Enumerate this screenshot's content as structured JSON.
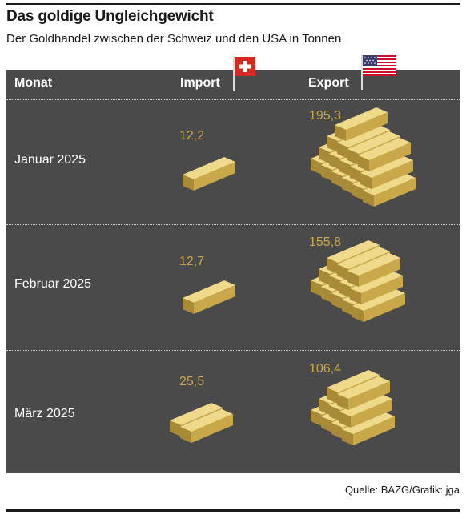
{
  "title": "Das goldige Ungleichgewicht",
  "subtitle": "Der Goldhandel zwischen der Schweiz und den USA in Tonnen",
  "source": "Quelle: BAZG/Grafik: jga",
  "headers": {
    "month": "Monat",
    "import": "Import",
    "export": "Export"
  },
  "flags": {
    "import": "swiss-flag-icon",
    "export": "us-flag-icon"
  },
  "colors": {
    "panel": "#4a4a4a",
    "gold_value": "#c9a84a",
    "gold_top": "#efd98a",
    "gold_front": "#c9a84a",
    "gold_side": "#a98a36"
  },
  "chart_data": {
    "type": "table",
    "title": "Das goldige Ungleichgewicht",
    "subtitle": "Der Goldhandel zwischen der Schweiz und den USA in Tonnen",
    "columns": [
      "Monat",
      "Import",
      "Export"
    ],
    "categories": [
      "Januar 2025",
      "Februar 2025",
      "März 2025"
    ],
    "series": [
      {
        "name": "Import",
        "values": [
          12.2,
          12.7,
          25.5
        ],
        "labels": [
          "12,2",
          "12,7",
          "25,5"
        ]
      },
      {
        "name": "Export",
        "values": [
          195.3,
          155.8,
          106.4
        ],
        "labels": [
          "195,3",
          "155,8",
          "106,4"
        ]
      }
    ]
  }
}
